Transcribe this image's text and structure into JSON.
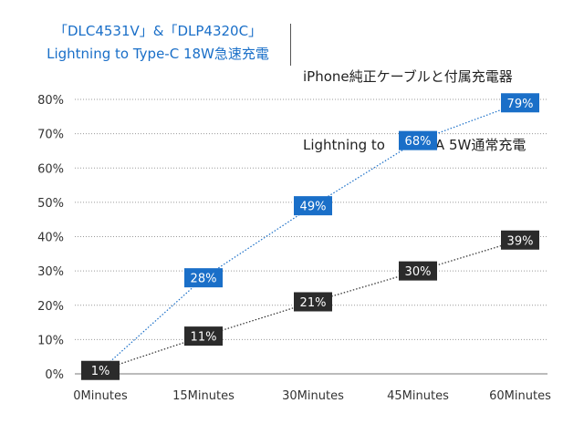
{
  "legend": {
    "left_line1": "「DLC4531V」&「DLP4320C」",
    "left_line2": "Lightning to Type-C 18W急速充電",
    "right_line1": "iPhone純正ケーブルと付属充電器",
    "right_line2": "Lightning to    USB-A 5W通常充電"
  },
  "colors": {
    "series1": "#1a6fc8",
    "series2": "#2b2b2b",
    "grid": "#9a9a9a"
  },
  "chart_data": {
    "type": "line",
    "x": [
      "0Minutes",
      "15Minutes",
      "30Minutes",
      "45Minutes",
      "60Minutes"
    ],
    "y_ticks": [
      "0%",
      "10%",
      "20%",
      "30%",
      "40%",
      "50%",
      "60%",
      "70%",
      "80%"
    ],
    "ylim": [
      0,
      80
    ],
    "grid": true,
    "series": [
      {
        "name": "「DLC4531V」&「DLP4320C」 Lightning to Type-C 18W急速充電",
        "values": [
          1,
          28,
          49,
          68,
          79
        ],
        "labels": [
          "",
          "28%",
          "49%",
          "68%",
          "79%"
        ]
      },
      {
        "name": "iPhone純正ケーブルと付属充電器 Lightning to USB-A 5W通常充電",
        "values": [
          1,
          11,
          21,
          30,
          39
        ],
        "labels": [
          "1%",
          "11%",
          "21%",
          "30%",
          "39%"
        ]
      }
    ]
  }
}
